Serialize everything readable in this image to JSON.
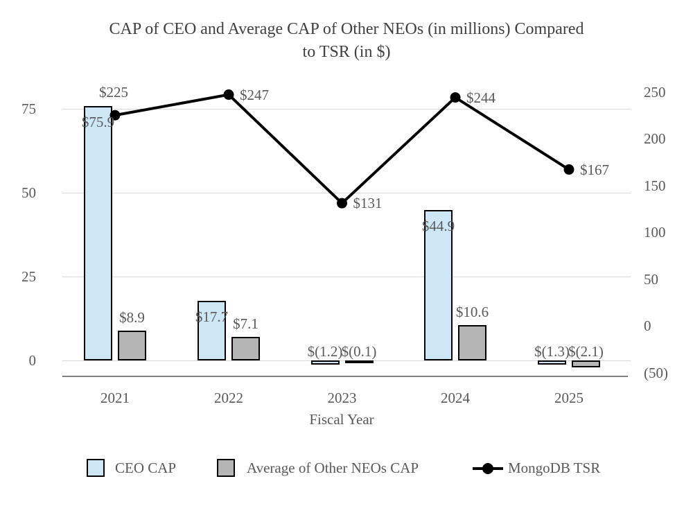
{
  "title_lines": [
    "CAP of CEO and Average CAP of Other NEOs (in millions) Compared",
    "to TSR (in $)"
  ],
  "chart_data": {
    "type": "combo-bar-line",
    "title": "CAP of CEO and Average CAP of Other NEOs (in millions) Compared to TSR (in $)",
    "xlabel": "Fiscal Year",
    "categories": [
      "2021",
      "2022",
      "2023",
      "2024",
      "2025"
    ],
    "series": [
      {
        "name": "CEO CAP",
        "type": "bar",
        "axis": "left",
        "values": [
          75.9,
          17.7,
          -1.2,
          44.9,
          -1.3
        ],
        "labels": [
          "$75.9",
          "$17.7",
          "$(1.2)",
          "$44.9",
          "$(1.3)"
        ],
        "color": "#cde7f7"
      },
      {
        "name": "Average of Other NEOs CAP",
        "type": "bar",
        "axis": "left",
        "values": [
          8.9,
          7.1,
          -0.1,
          10.6,
          -2.1
        ],
        "labels": [
          "$8.9",
          "$7.1",
          "$(0.1)",
          "$10.6",
          "$(2.1)"
        ],
        "color": "#b5b5b5"
      },
      {
        "name": "MongoDB TSR",
        "type": "line",
        "axis": "right",
        "values": [
          225,
          247,
          131,
          244,
          167
        ],
        "labels": [
          "$225",
          "$247",
          "$131",
          "$244",
          "$167"
        ],
        "color": "#000000"
      }
    ],
    "left_axis": {
      "tick_labels": [
        "75",
        "50",
        "25",
        "0"
      ],
      "tick_values": [
        75,
        50,
        25,
        0
      ],
      "range": [
        0,
        75
      ]
    },
    "right_axis": {
      "tick_labels": [
        "250",
        "200",
        "150",
        "100",
        "50",
        "0",
        "(50)"
      ],
      "tick_values": [
        250,
        200,
        150,
        100,
        50,
        0,
        -50
      ],
      "range": [
        -50,
        250
      ]
    },
    "grid": true,
    "legend_position": "bottom",
    "colors": {
      "grid": "#d9d9d9",
      "axis_line": "#808080",
      "text": "#595959",
      "bar_border": "#000000"
    }
  }
}
